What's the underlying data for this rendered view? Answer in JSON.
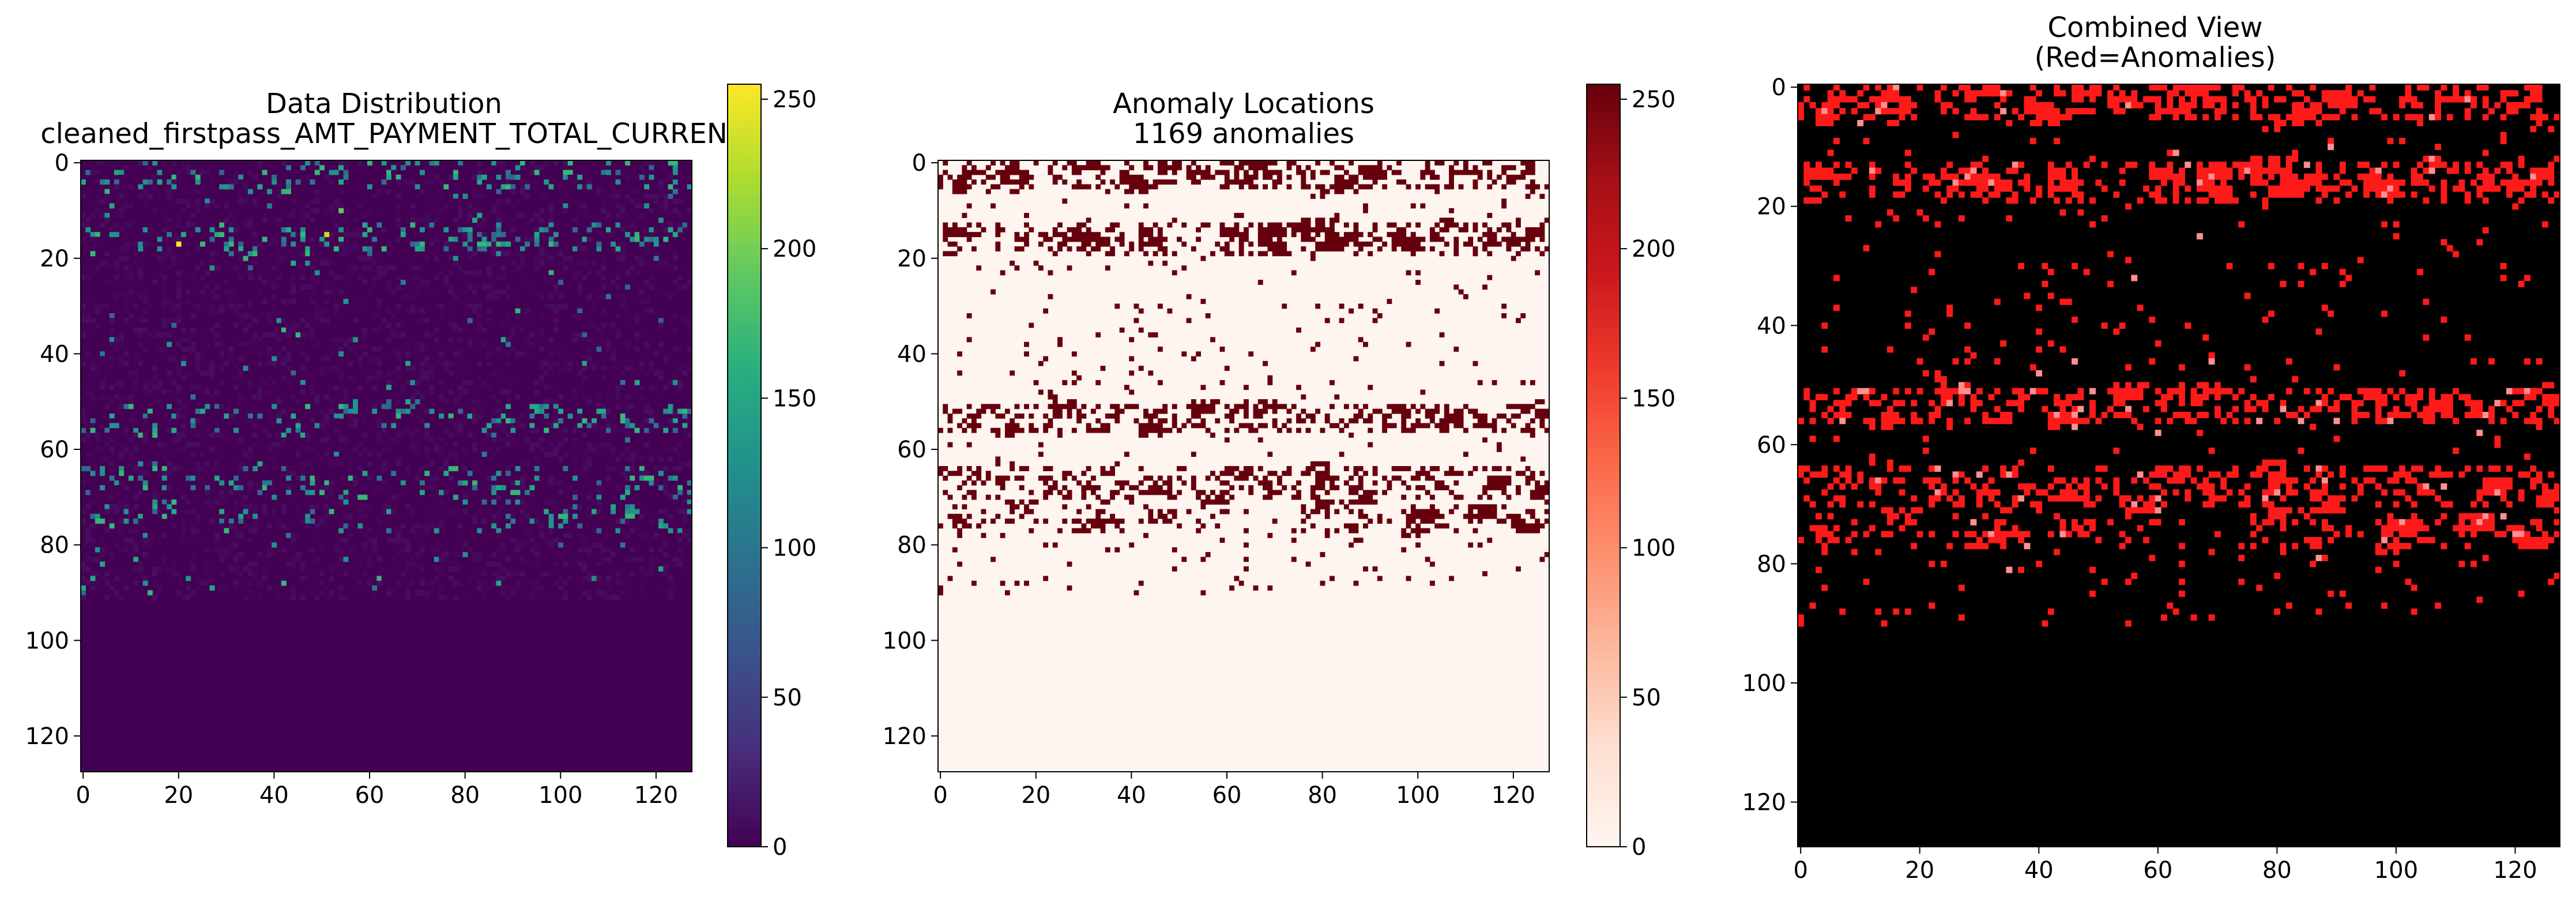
{
  "chart_data": [
    {
      "type": "heatmap",
      "title_lines": [
        "Data Distribution",
        "cleaned_firstpass_AMT_PAYMENT_TOTAL_CURREN"
      ],
      "colormap": "viridis",
      "grid_size": [
        128,
        128
      ],
      "xticks": [
        0,
        20,
        40,
        60,
        80,
        100,
        120
      ],
      "yticks": [
        0,
        20,
        40,
        60,
        80,
        100,
        120
      ],
      "colorbar": {
        "range": [
          0,
          255
        ],
        "ticks": [
          0,
          50,
          100,
          150,
          200,
          250
        ]
      },
      "data_rows_end": 92
    },
    {
      "type": "heatmap",
      "title_lines": [
        "Anomaly Locations",
        "1169 anomalies"
      ],
      "colormap": "Reds",
      "grid_size": [
        128,
        128
      ],
      "xticks": [
        0,
        20,
        40,
        60,
        80,
        100,
        120
      ],
      "yticks": [
        0,
        20,
        40,
        60,
        80,
        100,
        120
      ],
      "colorbar": {
        "range": [
          0,
          255
        ],
        "ticks": [
          0,
          50,
          100,
          150,
          200,
          250
        ]
      },
      "anomaly_count": 1169,
      "anomaly_bands": [
        {
          "row_start": 0,
          "row_end": 5,
          "density": 0.35
        },
        {
          "row_start": 13,
          "row_end": 19,
          "density": 0.3
        },
        {
          "row_start": 51,
          "row_end": 56,
          "density": 0.32
        },
        {
          "row_start": 64,
          "row_end": 70,
          "density": 0.28
        },
        {
          "row_start": 72,
          "row_end": 77,
          "density": 0.15
        }
      ]
    },
    {
      "type": "heatmap",
      "title_lines": [
        "Combined View",
        "(Red=Anomalies)"
      ],
      "colormap": "black-red overlay",
      "grid_size": [
        128,
        128
      ],
      "xticks": [
        0,
        20,
        40,
        60,
        80,
        100,
        120
      ],
      "yticks": [
        0,
        20,
        40,
        60,
        80,
        100,
        120
      ]
    }
  ],
  "colors": {
    "anomaly_dark": "#67000d",
    "anomaly_background": "#fff5f0",
    "combined_background": "#000000",
    "combined_anomaly": "#ff1a1a"
  }
}
